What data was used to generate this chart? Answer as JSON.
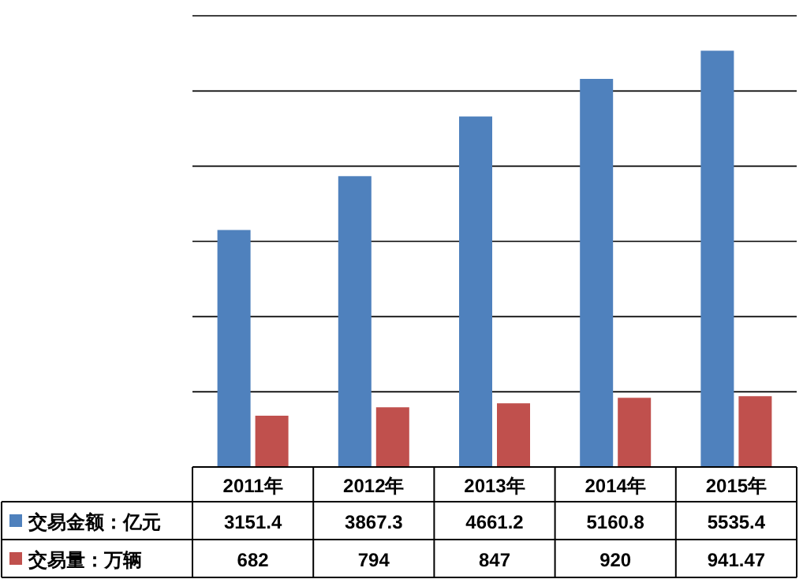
{
  "chart_data": {
    "type": "bar",
    "categories": [
      "2011年",
      "2012年",
      "2013年",
      "2014年",
      "2015年"
    ],
    "series": [
      {
        "name": "交易金额：亿元",
        "color": "#4f81bd",
        "values": [
          3151.4,
          3867.3,
          4661.2,
          5160.8,
          5535.4
        ]
      },
      {
        "name": "交易量：万辆",
        "color": "#c0504d",
        "values": [
          682,
          794,
          847,
          920,
          941.47
        ]
      }
    ],
    "ylim": [
      0,
      6000
    ],
    "yticks": [
      {
        "value": 0,
        "label": null
      },
      {
        "value": 1000,
        "label": null
      },
      {
        "value": 2000,
        "label": null
      },
      {
        "value": 3000,
        "label": null
      },
      {
        "value": 4000,
        "label": null
      },
      {
        "value": 5000,
        "label": null
      },
      {
        "value": 6000,
        "label": null
      }
    ],
    "grid": "y",
    "data_labels": true,
    "legend": "bottom"
  }
}
